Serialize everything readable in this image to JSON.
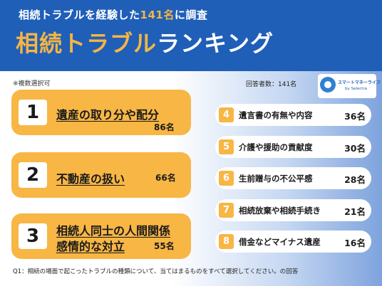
{
  "header": {
    "subtitle_a": "相続トラブルを経験した",
    "subtitle_num": "141名",
    "subtitle_b": "に調査",
    "title_a": "相続トラブル",
    "title_b": "ランキング"
  },
  "note": "※複数選択可",
  "respondents": "回答者数：141名",
  "logo": {
    "line1": "スマートマネーライフ",
    "line2": "by Selectra"
  },
  "chart_data": {
    "type": "table",
    "title": "相続トラブルランキング",
    "unit": "名",
    "rankings": [
      {
        "rank": "1",
        "label_lines": [
          "遺産の取り分や配分"
        ],
        "count": "86名",
        "value": 86
      },
      {
        "rank": "2",
        "label_lines": [
          "不動産の扱い"
        ],
        "count": "66名",
        "value": 66
      },
      {
        "rank": "3",
        "label_lines": [
          "相続人同士の人間関係",
          "感情的な対立"
        ],
        "count": "55名",
        "value": 55
      },
      {
        "rank": "4",
        "label_lines": [
          "遺言書の有無や内容"
        ],
        "count": "36名",
        "value": 36
      },
      {
        "rank": "5",
        "label_lines": [
          "介護や援助の貢献度"
        ],
        "count": "30名",
        "value": 30
      },
      {
        "rank": "6",
        "label_lines": [
          "生前贈与の不公平感"
        ],
        "count": "28名",
        "value": 28
      },
      {
        "rank": "7",
        "label_lines": [
          "相続放棄や相続手続き"
        ],
        "count": "21名",
        "value": 21
      },
      {
        "rank": "8",
        "label_lines": [
          "借金などマイナス遺産"
        ],
        "count": "16名",
        "value": 16
      }
    ]
  },
  "footnote": "Q1：相続の場面で起こったトラブルの種類について、当てはまるものをすべて選択してください。の回答"
}
